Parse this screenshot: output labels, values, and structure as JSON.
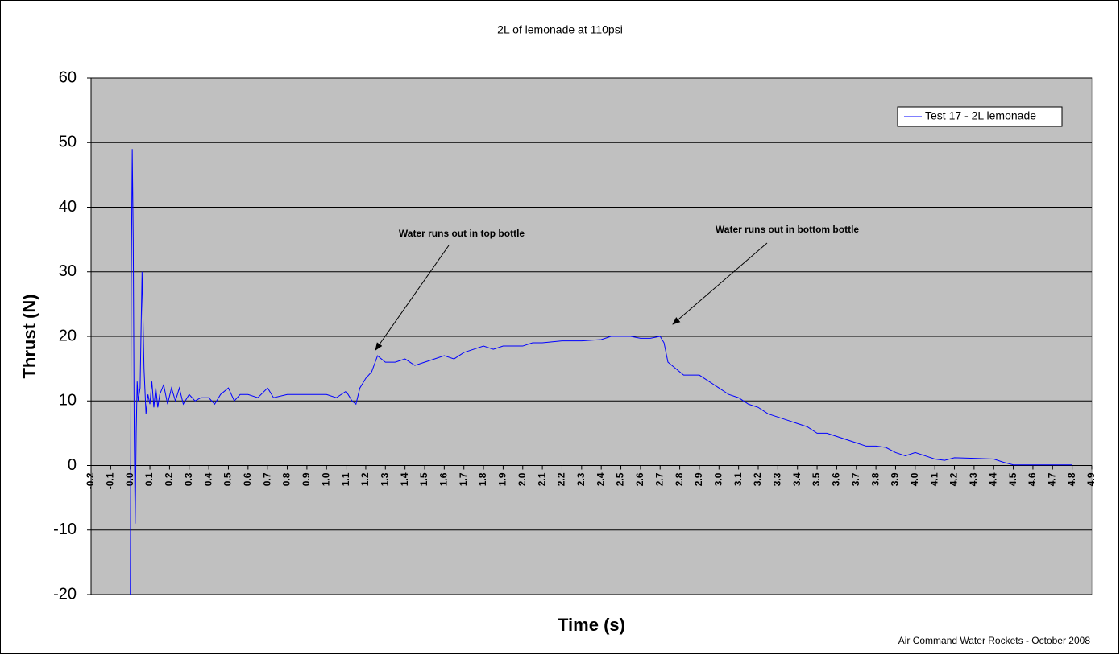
{
  "chart_data": {
    "type": "line",
    "title": "2L of lemonade at 110psi",
    "x_label": "Time (s)",
    "y_label": "Thrust (N)",
    "footer": "Air Command Water Rockets - October 2008",
    "annotations": [
      "Water runs out in top bottle",
      "Water runs out in bottom bottle"
    ],
    "xlim": [
      -0.2,
      4.9
    ],
    "xticks": [
      -0.2,
      -0.1,
      {
        "value": 0,
        "label": "0.0"
      },
      0.1,
      0.2,
      0.3,
      0.4,
      0.5,
      0.6,
      0.7,
      0.8,
      0.9,
      {
        "value": 1,
        "label": "1.0"
      },
      1.1,
      1.2,
      1.3,
      1.4,
      1.5,
      1.6,
      1.7,
      1.8,
      1.9,
      {
        "value": 2,
        "label": "2.0"
      },
      2.1,
      2.2,
      2.3,
      2.4,
      2.5,
      2.6,
      2.7,
      2.8,
      2.9,
      {
        "value": 3,
        "label": "3.0"
      },
      3.1,
      3.2,
      3.3,
      3.4,
      3.5,
      3.6,
      3.7,
      3.8,
      3.9,
      {
        "value": 4,
        "label": "4.0"
      },
      4.1,
      4.2,
      4.3,
      4.4,
      4.5,
      4.6,
      4.7,
      4.8,
      4.9
    ],
    "ylim": [
      -20,
      60
    ],
    "yticks": [
      -20,
      -10,
      0,
      10,
      20,
      30,
      40,
      50,
      60
    ],
    "grid": true,
    "legend": "upper-right",
    "series": [
      {
        "name": "Test 17 - 2L lemonade",
        "color": "#0000ff",
        "x": [
          0.0,
          0.005,
          0.01,
          0.015,
          0.02,
          0.025,
          0.03,
          0.035,
          0.04,
          0.05,
          0.06,
          0.07,
          0.08,
          0.09,
          0.1,
          0.11,
          0.12,
          0.13,
          0.14,
          0.15,
          0.17,
          0.19,
          0.21,
          0.23,
          0.25,
          0.27,
          0.3,
          0.33,
          0.36,
          0.4,
          0.43,
          0.46,
          0.5,
          0.53,
          0.56,
          0.6,
          0.65,
          0.7,
          0.73,
          0.8,
          0.9,
          1.0,
          1.05,
          1.1,
          1.13,
          1.15,
          1.17,
          1.2,
          1.23,
          1.26,
          1.3,
          1.35,
          1.4,
          1.45,
          1.5,
          1.55,
          1.6,
          1.65,
          1.7,
          1.75,
          1.8,
          1.85,
          1.9,
          1.95,
          2.0,
          2.05,
          2.1,
          2.2,
          2.3,
          2.4,
          2.45,
          2.5,
          2.55,
          2.6,
          2.65,
          2.7,
          2.72,
          2.74,
          2.78,
          2.82,
          2.87,
          2.9,
          2.95,
          3.0,
          3.05,
          3.1,
          3.15,
          3.2,
          3.25,
          3.3,
          3.35,
          3.4,
          3.45,
          3.5,
          3.55,
          3.6,
          3.65,
          3.7,
          3.75,
          3.8,
          3.85,
          3.9,
          3.95,
          4.0,
          4.05,
          4.1,
          4.15,
          4.2,
          4.3,
          4.4,
          4.45,
          4.5,
          4.6,
          4.7,
          4.8
        ],
        "values": [
          -20,
          28,
          49,
          35,
          5,
          -9,
          5,
          13,
          10,
          12,
          30,
          15,
          8,
          11,
          9.5,
          13,
          9,
          12,
          9,
          11,
          12.5,
          9.5,
          12,
          10,
          12,
          9.5,
          11,
          10,
          10.5,
          10.5,
          9.5,
          11,
          12,
          10,
          11,
          11,
          10.5,
          12,
          10.5,
          11,
          11,
          11,
          10.5,
          11.5,
          10,
          9.5,
          12,
          13.5,
          14.5,
          17,
          16,
          16,
          16.5,
          15.5,
          16,
          16.5,
          17,
          16.5,
          17.5,
          18,
          18.5,
          18,
          18.5,
          18.5,
          18.5,
          19,
          19,
          19.3,
          19.3,
          19.5,
          20,
          20,
          20,
          19.7,
          19.7,
          20,
          19,
          16,
          15,
          14,
          14,
          14,
          13,
          12,
          11,
          10.5,
          9.5,
          9,
          8,
          7.5,
          7,
          6.5,
          6,
          5,
          5,
          4.5,
          4,
          3.5,
          3,
          3,
          2.8,
          2,
          1.5,
          2,
          1.5,
          1,
          0.8,
          1.2,
          1.1,
          1,
          0.5,
          0.1,
          0.1,
          0.1,
          0.1
        ]
      }
    ]
  }
}
